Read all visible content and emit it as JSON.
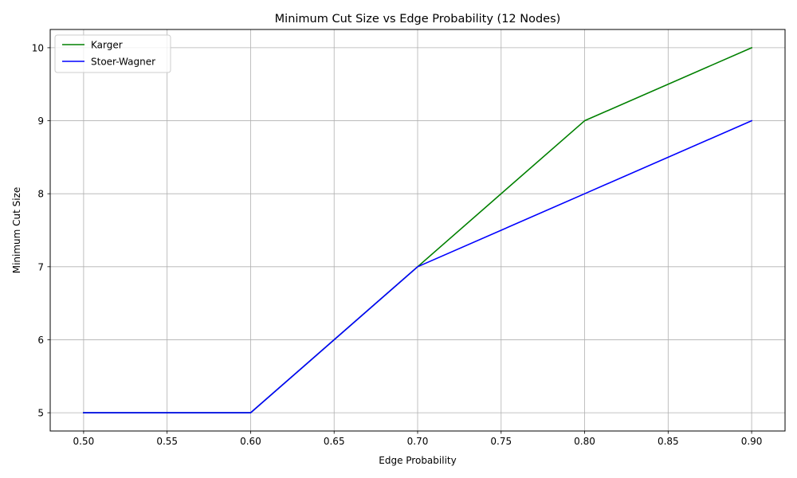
{
  "chart_data": {
    "type": "line",
    "title": "Minimum Cut Size vs Edge Probability (12 Nodes)",
    "xlabel": "Edge Probability",
    "ylabel": "Minimum Cut Size",
    "x": [
      0.5,
      0.6,
      0.7,
      0.8,
      0.9
    ],
    "series": [
      {
        "name": "Karger",
        "values": [
          5,
          5,
          7,
          9,
          10
        ],
        "color": "#008000"
      },
      {
        "name": "Stoer-Wagner",
        "values": [
          5,
          5,
          7,
          8,
          9
        ],
        "color": "#0000ff"
      }
    ],
    "xlim": [
      0.48,
      0.92
    ],
    "ylim": [
      4.75,
      10.25
    ],
    "xticks": [
      "0.50",
      "0.55",
      "0.60",
      "0.65",
      "0.70",
      "0.75",
      "0.80",
      "0.85",
      "0.90"
    ],
    "yticks": [
      "5",
      "6",
      "7",
      "8",
      "9",
      "10"
    ],
    "grid": true,
    "legend_position": "top-left"
  }
}
